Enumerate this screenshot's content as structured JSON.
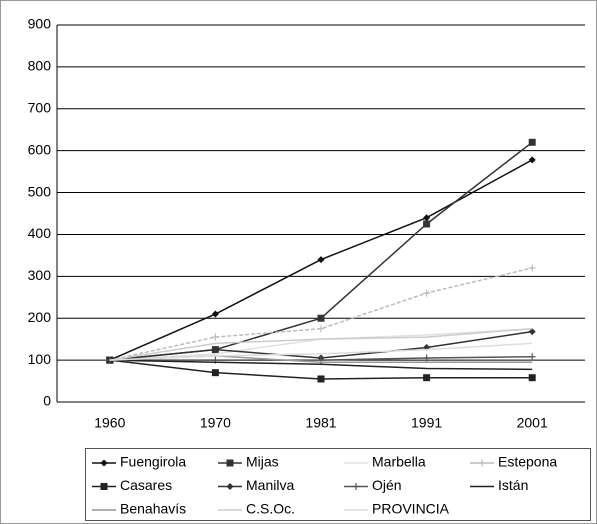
{
  "chart_data": {
    "type": "line",
    "categories": [
      "1960",
      "1970",
      "1981",
      "1991",
      "2001"
    ],
    "ylim": [
      0,
      900
    ],
    "yticks": [
      0,
      100,
      200,
      300,
      400,
      500,
      600,
      700,
      800,
      900
    ],
    "grid": true,
    "series": [
      {
        "name": "Fuengirola",
        "color": "#111111",
        "marker": "diamond",
        "values": [
          100,
          210,
          340,
          440,
          578
        ]
      },
      {
        "name": "Mijas",
        "color": "#333333",
        "marker": "square",
        "values": [
          100,
          125,
          200,
          425,
          620
        ]
      },
      {
        "name": "Marbella",
        "color": "#e0e0e0",
        "marker": "none",
        "values": [
          100,
          115,
          150,
          160,
          175
        ]
      },
      {
        "name": "Estepona",
        "color": "#bbbbbb",
        "marker": "star",
        "values": [
          100,
          155,
          175,
          260,
          320
        ]
      },
      {
        "name": "Casares",
        "color": "#222222",
        "marker": "square",
        "values": [
          100,
          70,
          55,
          58,
          58
        ]
      },
      {
        "name": "Manilva",
        "color": "#333333",
        "marker": "diamond",
        "values": [
          100,
          125,
          105,
          130,
          168
        ]
      },
      {
        "name": "Ojén",
        "color": "#555555",
        "marker": "plus",
        "values": [
          100,
          100,
          100,
          105,
          108
        ]
      },
      {
        "name": "Istán",
        "color": "#222222",
        "marker": "none",
        "values": [
          100,
          95,
          90,
          80,
          78
        ]
      },
      {
        "name": "Benahavís",
        "color": "#999999",
        "marker": "none",
        "values": [
          100,
          110,
          95,
          95,
          95
        ]
      },
      {
        "name": "C.S.Oc.",
        "color": "#cccccc",
        "marker": "none",
        "values": [
          100,
          140,
          150,
          155,
          175
        ]
      },
      {
        "name": "PROVINCIA",
        "color": "#dddddd",
        "marker": "none",
        "values": [
          100,
          110,
          115,
          125,
          140
        ]
      }
    ]
  }
}
